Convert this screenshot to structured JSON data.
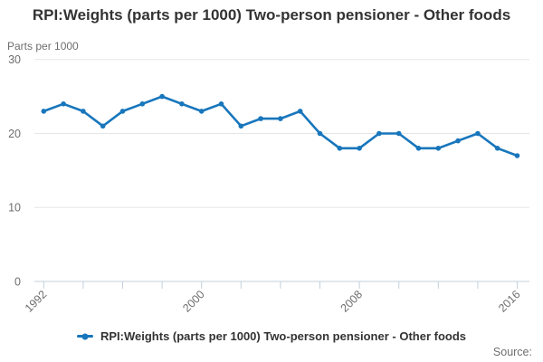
{
  "header": {
    "title": "RPI:Weights (parts per 1000) Two-person pensioner - Other foods"
  },
  "chart": {
    "unit_label": "Parts per 1000"
  },
  "legend": {
    "label": "RPI:Weights (parts per 1000) Two-person pensioner - Other foods"
  },
  "footer": {
    "source_label": "Source:"
  },
  "colors": {
    "accent": "#1876bc",
    "grid": "#e6e6e6",
    "axis": "#c3d0db",
    "text_muted": "#6e6e6e",
    "text_dark": "#333333"
  },
  "chart_data": {
    "type": "line",
    "title": "RPI:Weights (parts per 1000) Two-person pensioner - Other foods",
    "subtitle": "Parts per 1000",
    "xlabel": "",
    "ylabel": "Parts per 1000",
    "x": [
      1992,
      1993,
      1994,
      1995,
      1996,
      1997,
      1998,
      1999,
      2000,
      2001,
      2002,
      2003,
      2004,
      2005,
      2006,
      2007,
      2008,
      2009,
      2010,
      2011,
      2012,
      2013,
      2014,
      2015,
      2016
    ],
    "series": [
      {
        "name": "RPI:Weights (parts per 1000) Two-person pensioner - Other foods",
        "values": [
          23,
          24,
          23,
          21,
          23,
          24,
          25,
          24,
          23,
          24,
          21,
          22,
          22,
          23,
          20,
          18,
          18,
          20,
          20,
          18,
          18,
          19,
          20,
          18,
          17
        ]
      }
    ],
    "ylim": [
      0,
      30
    ],
    "yticks": [
      0,
      10,
      20,
      30
    ],
    "xticks": [
      1992,
      1994,
      1996,
      1998,
      2000,
      2002,
      2004,
      2006,
      2008,
      2010,
      2012,
      2014,
      2016
    ],
    "xtick_labels_shown": [
      "1992",
      "2000",
      "2008",
      "2016"
    ],
    "grid": "horizontal",
    "legend_position": "bottom",
    "marker": "circle"
  }
}
